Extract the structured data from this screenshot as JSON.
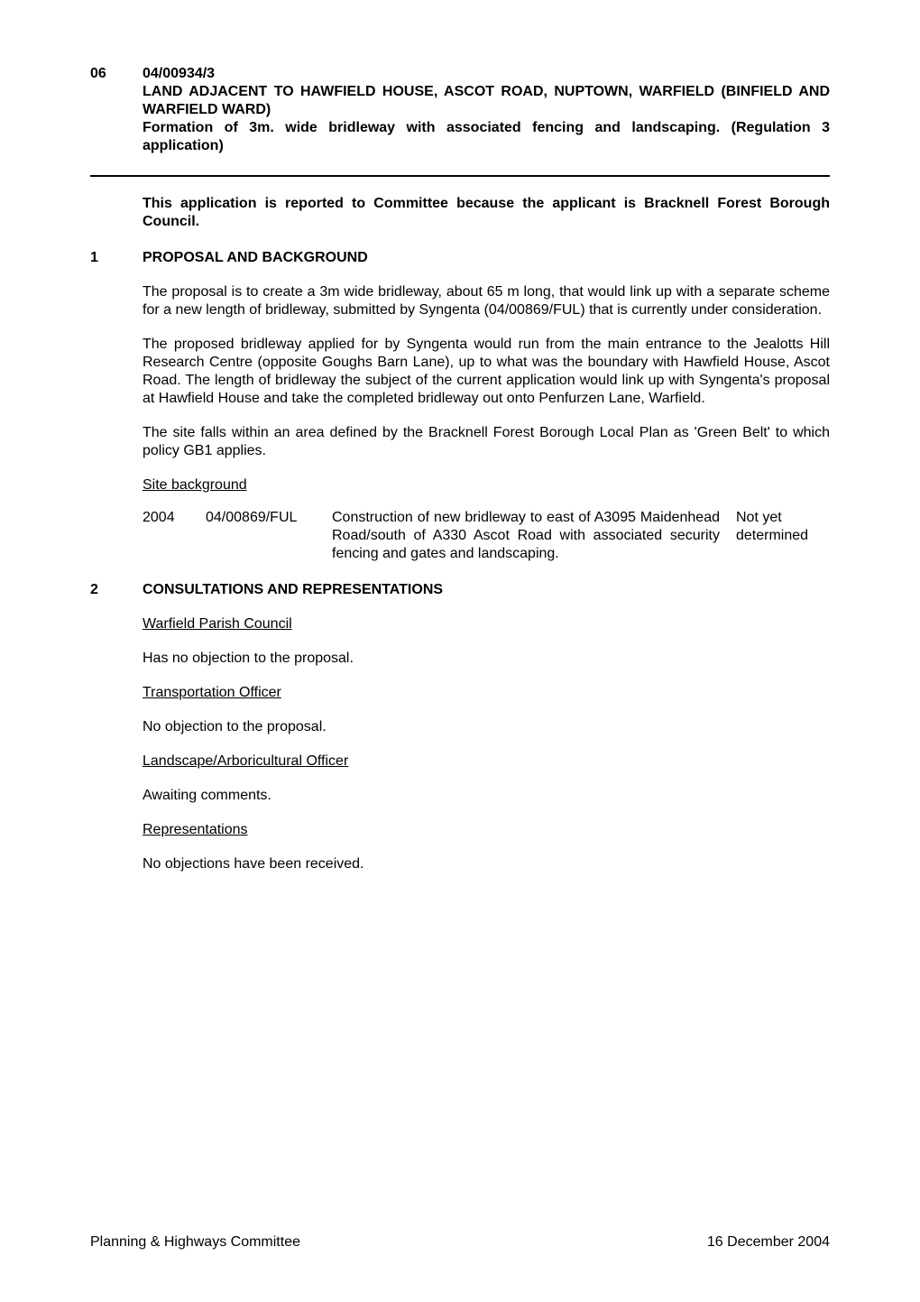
{
  "colors": {
    "text": "#000000",
    "background": "#ffffff",
    "rule": "#000000"
  },
  "typography": {
    "family": "Arial",
    "body_size_pt": 12,
    "line_height": 1.25,
    "bold_weight": 700
  },
  "item": {
    "number": "06",
    "ref": "04/00934/3",
    "title_line1": "LAND ADJACENT TO HAWFIELD HOUSE, ASCOT ROAD, NUPTOWN, WARFIELD (BINFIELD AND WARFIELD WARD)",
    "title_line2": "Formation of 3m. wide bridleway with associated fencing and landscaping. (Regulation 3 application)"
  },
  "intro_note": "This application is reported to Committee because the applicant is Bracknell Forest Borough Council.",
  "section1": {
    "num": "1",
    "heading": "PROPOSAL AND BACKGROUND",
    "p1": "The proposal is to create a 3m wide bridleway, about 65 m long, that would link up with a separate scheme for a new length of bridleway, submitted by Syngenta (04/00869/FUL) that is currently under consideration.",
    "p2": "The proposed bridleway applied for by Syngenta would run from the main entrance to the Jealotts Hill Research Centre (opposite Goughs Barn Lane), up to what was the boundary with Hawfield House, Ascot Road. The length of bridleway the subject of the current application would link up with Syngenta's proposal at Hawfield House and take the completed bridleway out onto Penfurzen Lane, Warfield.",
    "p3": "The site falls within an area defined by the Bracknell Forest Borough Local Plan as 'Green Belt' to which policy GB1 applies.",
    "sub_heading": "Site background",
    "table": {
      "year": "2004",
      "ref": "04/00869/FUL",
      "desc": "Construction of new bridleway to east of A3095 Maidenhead Road/south of A330 Ascot Road with associated security fencing and gates and landscaping.",
      "status": "Not yet determined"
    }
  },
  "section2": {
    "num": "2",
    "heading": "CONSULTATIONS AND REPRESENTATIONS",
    "sub1": "Warfield Parish Council",
    "p1": "Has no objection to the proposal.",
    "sub2": "Transportation Officer",
    "p2": "No objection to the proposal.",
    "sub3": "Landscape/Arboricultural Officer",
    "p3": "Awaiting comments.",
    "sub4": "Representations",
    "p4": "No objections have been received."
  },
  "footer": {
    "left": "Planning & Highways Committee",
    "right": "16 December 2004"
  }
}
